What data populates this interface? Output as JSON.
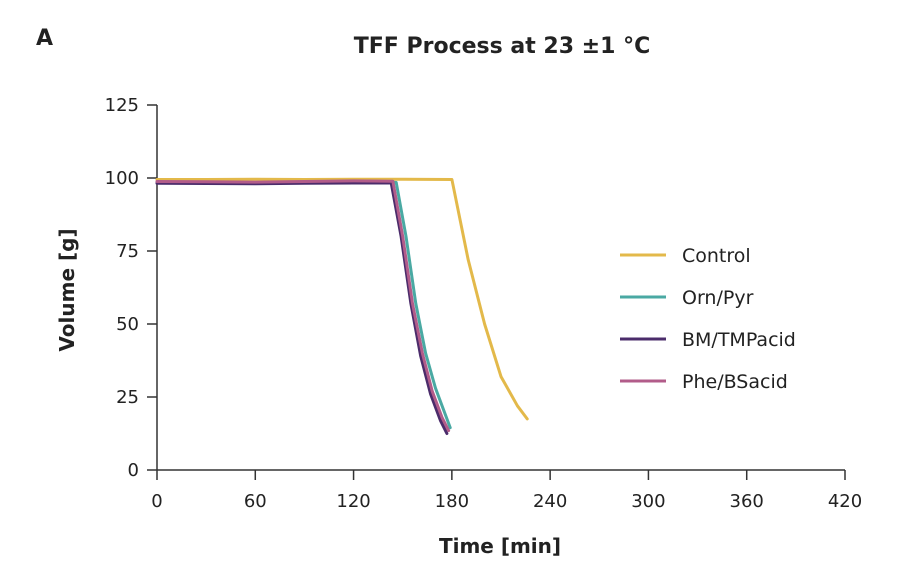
{
  "panel_label": "A",
  "chart_data": {
    "type": "line",
    "title": "TFF Process at 23 ±1 °C",
    "xlabel": "Time [min]",
    "ylabel": "Volume [g]",
    "xlim": [
      0,
      420
    ],
    "ylim": [
      0,
      125
    ],
    "xticks": [
      0,
      60,
      120,
      180,
      240,
      300,
      360,
      420
    ],
    "yticks": [
      0,
      25,
      50,
      75,
      100,
      125
    ],
    "grid": false,
    "legend_position": "right",
    "series": [
      {
        "name": "Control",
        "color": "#e3b94a",
        "x": [
          0,
          30,
          60,
          90,
          120,
          150,
          180,
          190,
          200,
          210,
          220,
          226
        ],
        "y": [
          99.5,
          99.5,
          99.6,
          99.5,
          99.6,
          99.6,
          99.5,
          72,
          50,
          32,
          22,
          17.5
        ]
      },
      {
        "name": "Orn/Pyr",
        "color": "#4aa9a3",
        "x": [
          0,
          30,
          60,
          90,
          120,
          146,
          152,
          158,
          164,
          170,
          176,
          179
        ],
        "y": [
          98.5,
          98.3,
          98.4,
          98.5,
          98.6,
          98.5,
          80,
          57,
          40,
          28,
          19,
          14.5
        ]
      },
      {
        "name": "BM/TMPacid",
        "color": "#4b2c6b",
        "x": [
          0,
          30,
          60,
          90,
          120,
          143,
          149,
          155,
          161,
          167,
          173,
          177
        ],
        "y": [
          98.2,
          98.1,
          98.0,
          98.2,
          98.3,
          98.3,
          80,
          57,
          39,
          26,
          17,
          12.5
        ]
      },
      {
        "name": "Phe/BSacid",
        "color": "#b25c8a",
        "x": [
          0,
          30,
          60,
          90,
          120,
          144,
          150,
          156,
          162,
          168,
          174,
          178
        ],
        "y": [
          98.8,
          98.7,
          98.6,
          98.8,
          99.0,
          98.9,
          80,
          57,
          40,
          27,
          18,
          13.5
        ]
      }
    ]
  }
}
